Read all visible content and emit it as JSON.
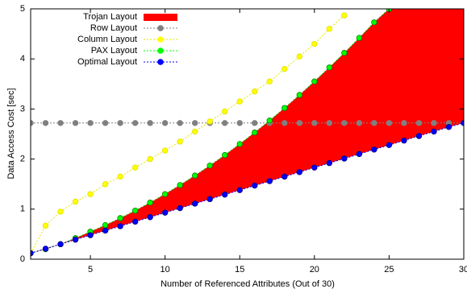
{
  "chart_data": {
    "type": "line",
    "xlabel": "Number of Referenced Attributes (Out of 30)",
    "ylabel": "Data Access Cost [sec]",
    "x": [
      1,
      2,
      3,
      4,
      5,
      6,
      7,
      8,
      9,
      10,
      11,
      12,
      13,
      14,
      15,
      16,
      17,
      18,
      19,
      20,
      21,
      22,
      23,
      24,
      25,
      26,
      27,
      28,
      29,
      30
    ],
    "xlim": [
      1,
      30
    ],
    "xticks": [
      5,
      10,
      15,
      20,
      25,
      30
    ],
    "ylim": [
      0,
      5
    ],
    "yticks": [
      0,
      1,
      2,
      3,
      4,
      5
    ],
    "legend": "top-left",
    "series": [
      {
        "name": "Trojan Layout",
        "color": "#ff0000",
        "fill_between": [
          3,
          4
        ]
      },
      {
        "name": "Row Layout",
        "color": "#808080",
        "values": [
          2.72,
          2.72,
          2.72,
          2.72,
          2.72,
          2.72,
          2.72,
          2.72,
          2.72,
          2.72,
          2.72,
          2.72,
          2.72,
          2.72,
          2.72,
          2.72,
          2.72,
          2.72,
          2.72,
          2.72,
          2.72,
          2.72,
          2.72,
          2.72,
          2.72,
          2.72,
          2.72,
          2.72,
          2.72,
          2.72
        ]
      },
      {
        "name": "Column Layout",
        "color": "#ffff00",
        "values": [
          0.12,
          0.67,
          0.95,
          1.15,
          1.3,
          1.5,
          1.65,
          1.83,
          2.0,
          2.17,
          2.35,
          2.55,
          2.75,
          2.95,
          3.15,
          3.35,
          3.55,
          3.8,
          4.05,
          4.3,
          4.6,
          4.87,
          null,
          null,
          null,
          null,
          null,
          null,
          null,
          null
        ]
      },
      {
        "name": "PAX Layout",
        "color": "#00ff00",
        "values": [
          0.12,
          0.2,
          0.3,
          0.42,
          0.55,
          0.68,
          0.82,
          0.97,
          1.13,
          1.3,
          1.48,
          1.67,
          1.87,
          2.08,
          2.3,
          2.53,
          2.77,
          3.02,
          3.28,
          3.55,
          3.83,
          4.12,
          4.42,
          4.73,
          5.0,
          null,
          null,
          null,
          null,
          null
        ]
      },
      {
        "name": "Optimal Layout",
        "color": "#0000ff",
        "values": [
          0.12,
          0.21,
          0.3,
          0.39,
          0.48,
          0.57,
          0.66,
          0.75,
          0.84,
          0.93,
          1.02,
          1.11,
          1.2,
          1.29,
          1.38,
          1.47,
          1.56,
          1.65,
          1.74,
          1.83,
          1.92,
          2.01,
          2.1,
          2.19,
          2.28,
          2.37,
          2.46,
          2.55,
          2.64,
          2.72
        ]
      }
    ]
  }
}
